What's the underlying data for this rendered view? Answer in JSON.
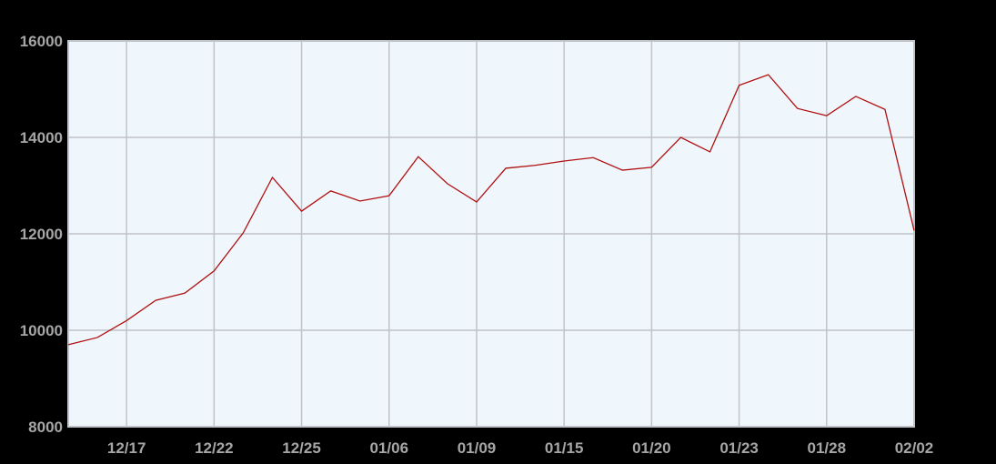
{
  "chart_data": {
    "type": "line",
    "title": "",
    "xlabel": "",
    "ylabel": "",
    "ylim": [
      8000,
      16000
    ],
    "yticks": [
      8000,
      10000,
      12000,
      14000,
      16000
    ],
    "grid": true,
    "x_tick_labels": [
      {
        "index": 2,
        "label": "12/17"
      },
      {
        "index": 5,
        "label": "12/22"
      },
      {
        "index": 8,
        "label": "12/25"
      },
      {
        "index": 11,
        "label": "01/06"
      },
      {
        "index": 14,
        "label": "01/09"
      },
      {
        "index": 17,
        "label": "01/15"
      },
      {
        "index": 20,
        "label": "01/20"
      },
      {
        "index": 23,
        "label": "01/23"
      },
      {
        "index": 26,
        "label": "01/28"
      },
      {
        "index": 29,
        "label": "02/02"
      }
    ],
    "values": [
      9700,
      9850,
      10200,
      10620,
      10770,
      11230,
      12020,
      13170,
      12470,
      12890,
      12680,
      12790,
      13600,
      13040,
      12660,
      13360,
      13420,
      13510,
      13580,
      13320,
      13380,
      14000,
      13700,
      15080,
      15300,
      14600,
      14450,
      14850,
      14580,
      12070
    ],
    "colors": {
      "line": "#b01010",
      "plot_bg": "#eff7fd",
      "grid": "#c0c4c8",
      "background": "#000000",
      "tick_text": "#a6a6a6"
    }
  }
}
